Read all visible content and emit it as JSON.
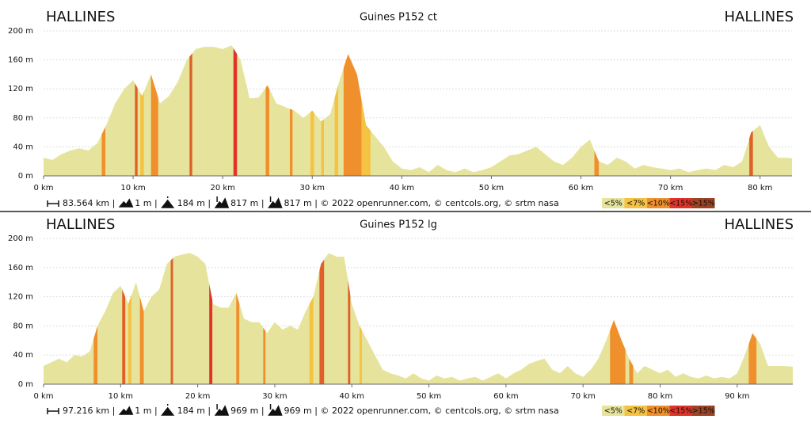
{
  "chart_data": [
    {
      "type": "area",
      "title": "Guines P152 ct",
      "start_label": "HALLINES",
      "end_label": "HALLINES",
      "x": [
        0,
        1,
        2,
        3,
        4,
        5,
        6,
        7,
        8,
        9,
        10,
        11,
        12,
        13,
        14,
        15,
        16,
        17,
        18,
        19,
        20,
        21,
        22,
        23,
        24,
        25,
        26,
        27,
        28,
        29,
        30,
        31,
        32,
        33,
        34,
        35,
        36,
        37,
        38,
        39,
        40,
        41,
        42,
        43,
        44,
        45,
        46,
        47,
        48,
        49,
        50,
        51,
        52,
        53,
        54,
        55,
        56,
        57,
        58,
        59,
        60,
        61,
        62,
        63,
        64,
        65,
        66,
        67,
        68,
        69,
        70,
        71,
        72,
        73,
        74,
        75,
        76,
        77,
        78,
        79,
        80,
        81,
        82,
        83,
        83.564
      ],
      "series": [
        {
          "name": "elevation",
          "color": "#e6e49c",
          "values": [
            25,
            22,
            30,
            35,
            38,
            35,
            45,
            70,
            100,
            120,
            132,
            110,
            140,
            100,
            110,
            130,
            160,
            175,
            178,
            178,
            175,
            180,
            160,
            107,
            108,
            125,
            100,
            95,
            90,
            80,
            90,
            75,
            85,
            130,
            168,
            140,
            70,
            55,
            40,
            20,
            10,
            8,
            12,
            5,
            15,
            8,
            5,
            10,
            5,
            8,
            12,
            20,
            28,
            30,
            35,
            40,
            30,
            20,
            15,
            25,
            40,
            50,
            20,
            15,
            25,
            20,
            10,
            15,
            12,
            10,
            8,
            10,
            5,
            8,
            10,
            8,
            15,
            12,
            20,
            60,
            70,
            40,
            25,
            25,
            24
          ]
        }
      ],
      "steep_sections": [
        {
          "from": 6.5,
          "to": 6.9,
          "color": "#f0902c"
        },
        {
          "from": 10.2,
          "to": 10.5,
          "color": "#e0602a"
        },
        {
          "from": 10.8,
          "to": 11.2,
          "color": "#f5c242"
        },
        {
          "from": 12,
          "to": 12.8,
          "color": "#f0902c"
        },
        {
          "from": 16.3,
          "to": 16.6,
          "color": "#e0602a"
        },
        {
          "from": 21.2,
          "to": 21.6,
          "color": "#e0332a"
        },
        {
          "from": 24.8,
          "to": 25.2,
          "color": "#f0902c"
        },
        {
          "from": 27.5,
          "to": 27.8,
          "color": "#f0902c"
        },
        {
          "from": 29.8,
          "to": 30.2,
          "color": "#f5c242"
        },
        {
          "from": 31,
          "to": 31.3,
          "color": "#f5c242"
        },
        {
          "from": 32.5,
          "to": 32.9,
          "color": "#f5c242"
        },
        {
          "from": 33.5,
          "to": 35.5,
          "color": "#f0902c"
        },
        {
          "from": 35.5,
          "to": 36.5,
          "color": "#f5c242"
        },
        {
          "from": 61.5,
          "to": 62,
          "color": "#f0902c"
        },
        {
          "from": 78.8,
          "to": 79.2,
          "color": "#e0602a"
        }
      ],
      "xlim": [
        0,
        83.564
      ],
      "ylim": [
        0,
        200
      ],
      "xticks": [
        {
          "value": 0,
          "label": "0 km"
        },
        {
          "value": 10,
          "label": "10 km"
        },
        {
          "value": 20,
          "label": "20 km"
        },
        {
          "value": 30,
          "label": "30 km"
        },
        {
          "value": 40,
          "label": "40 km"
        },
        {
          "value": 50,
          "label": "50 km"
        },
        {
          "value": 60,
          "label": "60 km"
        },
        {
          "value": 70,
          "label": "70 km"
        },
        {
          "value": 80,
          "label": "80 km"
        }
      ],
      "yticks": [
        {
          "value": 0,
          "label": "0 m"
        },
        {
          "value": 40,
          "label": "40 m"
        },
        {
          "value": 80,
          "label": "80 m"
        },
        {
          "value": 120,
          "label": "120 m"
        },
        {
          "value": 160,
          "label": "160 m"
        },
        {
          "value": 200,
          "label": "200 m"
        }
      ],
      "grid": true,
      "stats": [
        "83.564 km |",
        "1 m |",
        "184 m |",
        "817 m |",
        "817 m | © 2022 openrunner.com, © centcols.org, © srtm nasa"
      ],
      "legend": [
        {
          "label": "<5%",
          "color": "#e6e49c"
        },
        {
          "label": "<7%",
          "color": "#f5c242"
        },
        {
          "label": "<10%",
          "color": "#f0902c"
        },
        {
          "label": "<15%",
          "color": "#e0332a"
        },
        {
          "label": ">15%",
          "color": "#9c4424"
        }
      ]
    },
    {
      "type": "area",
      "title": "Guines P152 lg",
      "start_label": "HALLINES",
      "end_label": "HALLINES",
      "x": [
        0,
        1,
        2,
        3,
        4,
        5,
        6,
        7,
        8,
        9,
        10,
        11,
        12,
        13,
        14,
        15,
        16,
        17,
        18,
        19,
        20,
        21,
        22,
        23,
        24,
        25,
        26,
        27,
        28,
        29,
        30,
        31,
        32,
        33,
        34,
        35,
        36,
        37,
        38,
        39,
        40,
        41,
        42,
        43,
        44,
        45,
        46,
        47,
        48,
        49,
        50,
        51,
        52,
        53,
        54,
        55,
        56,
        57,
        58,
        59,
        60,
        61,
        62,
        63,
        64,
        65,
        66,
        67,
        68,
        69,
        70,
        71,
        72,
        73,
        74,
        75,
        76,
        77,
        78,
        79,
        80,
        81,
        82,
        83,
        84,
        85,
        86,
        87,
        88,
        89,
        90,
        91,
        92,
        93,
        94,
        95,
        96,
        97.216
      ],
      "series": [
        {
          "name": "elevation",
          "color": "#e6e49c",
          "values": [
            25,
            30,
            35,
            30,
            40,
            38,
            45,
            80,
            100,
            125,
            135,
            110,
            140,
            100,
            120,
            130,
            165,
            175,
            178,
            180,
            175,
            165,
            110,
            105,
            105,
            125,
            90,
            85,
            85,
            70,
            85,
            75,
            80,
            75,
            100,
            120,
            165,
            180,
            175,
            175,
            110,
            80,
            60,
            40,
            20,
            15,
            12,
            8,
            15,
            8,
            5,
            12,
            8,
            10,
            5,
            8,
            10,
            5,
            10,
            15,
            8,
            15,
            20,
            28,
            32,
            35,
            20,
            15,
            25,
            15,
            10,
            20,
            35,
            60,
            88,
            60,
            35,
            15,
            25,
            20,
            15,
            20,
            10,
            15,
            10,
            8,
            12,
            8,
            10,
            8,
            15,
            40,
            70,
            55,
            25,
            25,
            25,
            24
          ]
        }
      ],
      "steep_sections": [
        {
          "from": 6.5,
          "to": 7,
          "color": "#f0902c"
        },
        {
          "from": 10.2,
          "to": 10.6,
          "color": "#e0602a"
        },
        {
          "from": 11,
          "to": 11.4,
          "color": "#f5c242"
        },
        {
          "from": 12.5,
          "to": 13,
          "color": "#f0902c"
        },
        {
          "from": 16.5,
          "to": 16.8,
          "color": "#e0602a"
        },
        {
          "from": 21.5,
          "to": 21.9,
          "color": "#e0332a"
        },
        {
          "from": 25,
          "to": 25.4,
          "color": "#f0902c"
        },
        {
          "from": 28.5,
          "to": 28.8,
          "color": "#f0902c"
        },
        {
          "from": 34.5,
          "to": 35,
          "color": "#f5c242"
        },
        {
          "from": 35.8,
          "to": 36.4,
          "color": "#e0602a"
        },
        {
          "from": 39.5,
          "to": 39.8,
          "color": "#e0602a"
        },
        {
          "from": 41,
          "to": 41.3,
          "color": "#f5c242"
        },
        {
          "from": 73.5,
          "to": 75.5,
          "color": "#f0902c"
        },
        {
          "from": 76,
          "to": 76.5,
          "color": "#f0902c"
        },
        {
          "from": 91.5,
          "to": 92.5,
          "color": "#f0902c"
        }
      ],
      "xlim": [
        0,
        97.216
      ],
      "ylim": [
        0,
        200
      ],
      "xticks": [
        {
          "value": 0,
          "label": "0 km"
        },
        {
          "value": 10,
          "label": "10 km"
        },
        {
          "value": 20,
          "label": "20 km"
        },
        {
          "value": 30,
          "label": "30 km"
        },
        {
          "value": 40,
          "label": "40 km"
        },
        {
          "value": 50,
          "label": "50 km"
        },
        {
          "value": 60,
          "label": "60 km"
        },
        {
          "value": 70,
          "label": "70 km"
        },
        {
          "value": 80,
          "label": "80 km"
        },
        {
          "value": 90,
          "label": "90 km"
        }
      ],
      "yticks": [
        {
          "value": 0,
          "label": "0 m"
        },
        {
          "value": 40,
          "label": "40 m"
        },
        {
          "value": 80,
          "label": "80 m"
        },
        {
          "value": 120,
          "label": "120 m"
        },
        {
          "value": 160,
          "label": "160 m"
        },
        {
          "value": 200,
          "label": "200 m"
        }
      ],
      "grid": true,
      "stats": [
        "97.216 km |",
        "1 m |",
        "184 m |",
        "969 m |",
        "969 m | © 2022 openrunner.com, © centcols.org, © srtm nasa"
      ],
      "legend": [
        {
          "label": "<5%",
          "color": "#e6e49c"
        },
        {
          "label": "<7%",
          "color": "#f5c242"
        },
        {
          "label": "<10%",
          "color": "#f0902c"
        },
        {
          "label": "<15%",
          "color": "#e0332a"
        },
        {
          "label": ">15%",
          "color": "#9c4424"
        }
      ]
    }
  ]
}
